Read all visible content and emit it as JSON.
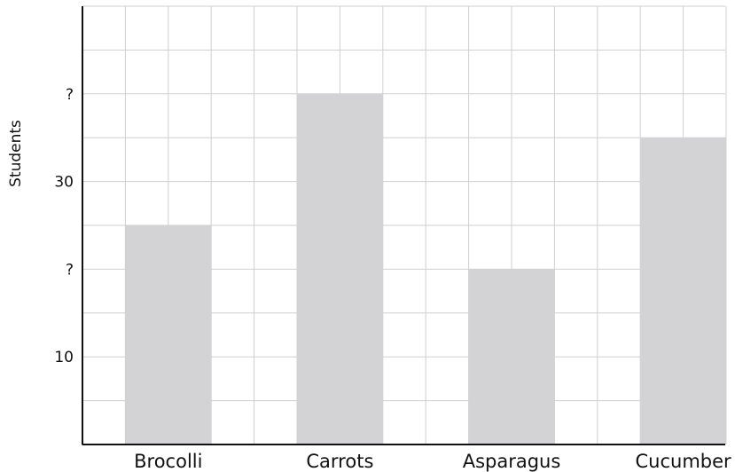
{
  "chart_data": {
    "type": "bar",
    "categories": [
      "Brocolli",
      "Carrots",
      "Asparagus",
      "Cucumber"
    ],
    "values": [
      25,
      40,
      20,
      35
    ],
    "ylabel": "Students",
    "ylim": [
      0,
      50
    ],
    "yticks": [
      {
        "value": 10,
        "label": "10"
      },
      {
        "value": 20,
        "label": "?"
      },
      {
        "value": 30,
        "label": "30"
      },
      {
        "value": 40,
        "label": "?"
      }
    ],
    "grid": true,
    "colors": {
      "bar": "#d3d3d5",
      "grid": "#cfcfcf",
      "axis": "#111111"
    }
  }
}
